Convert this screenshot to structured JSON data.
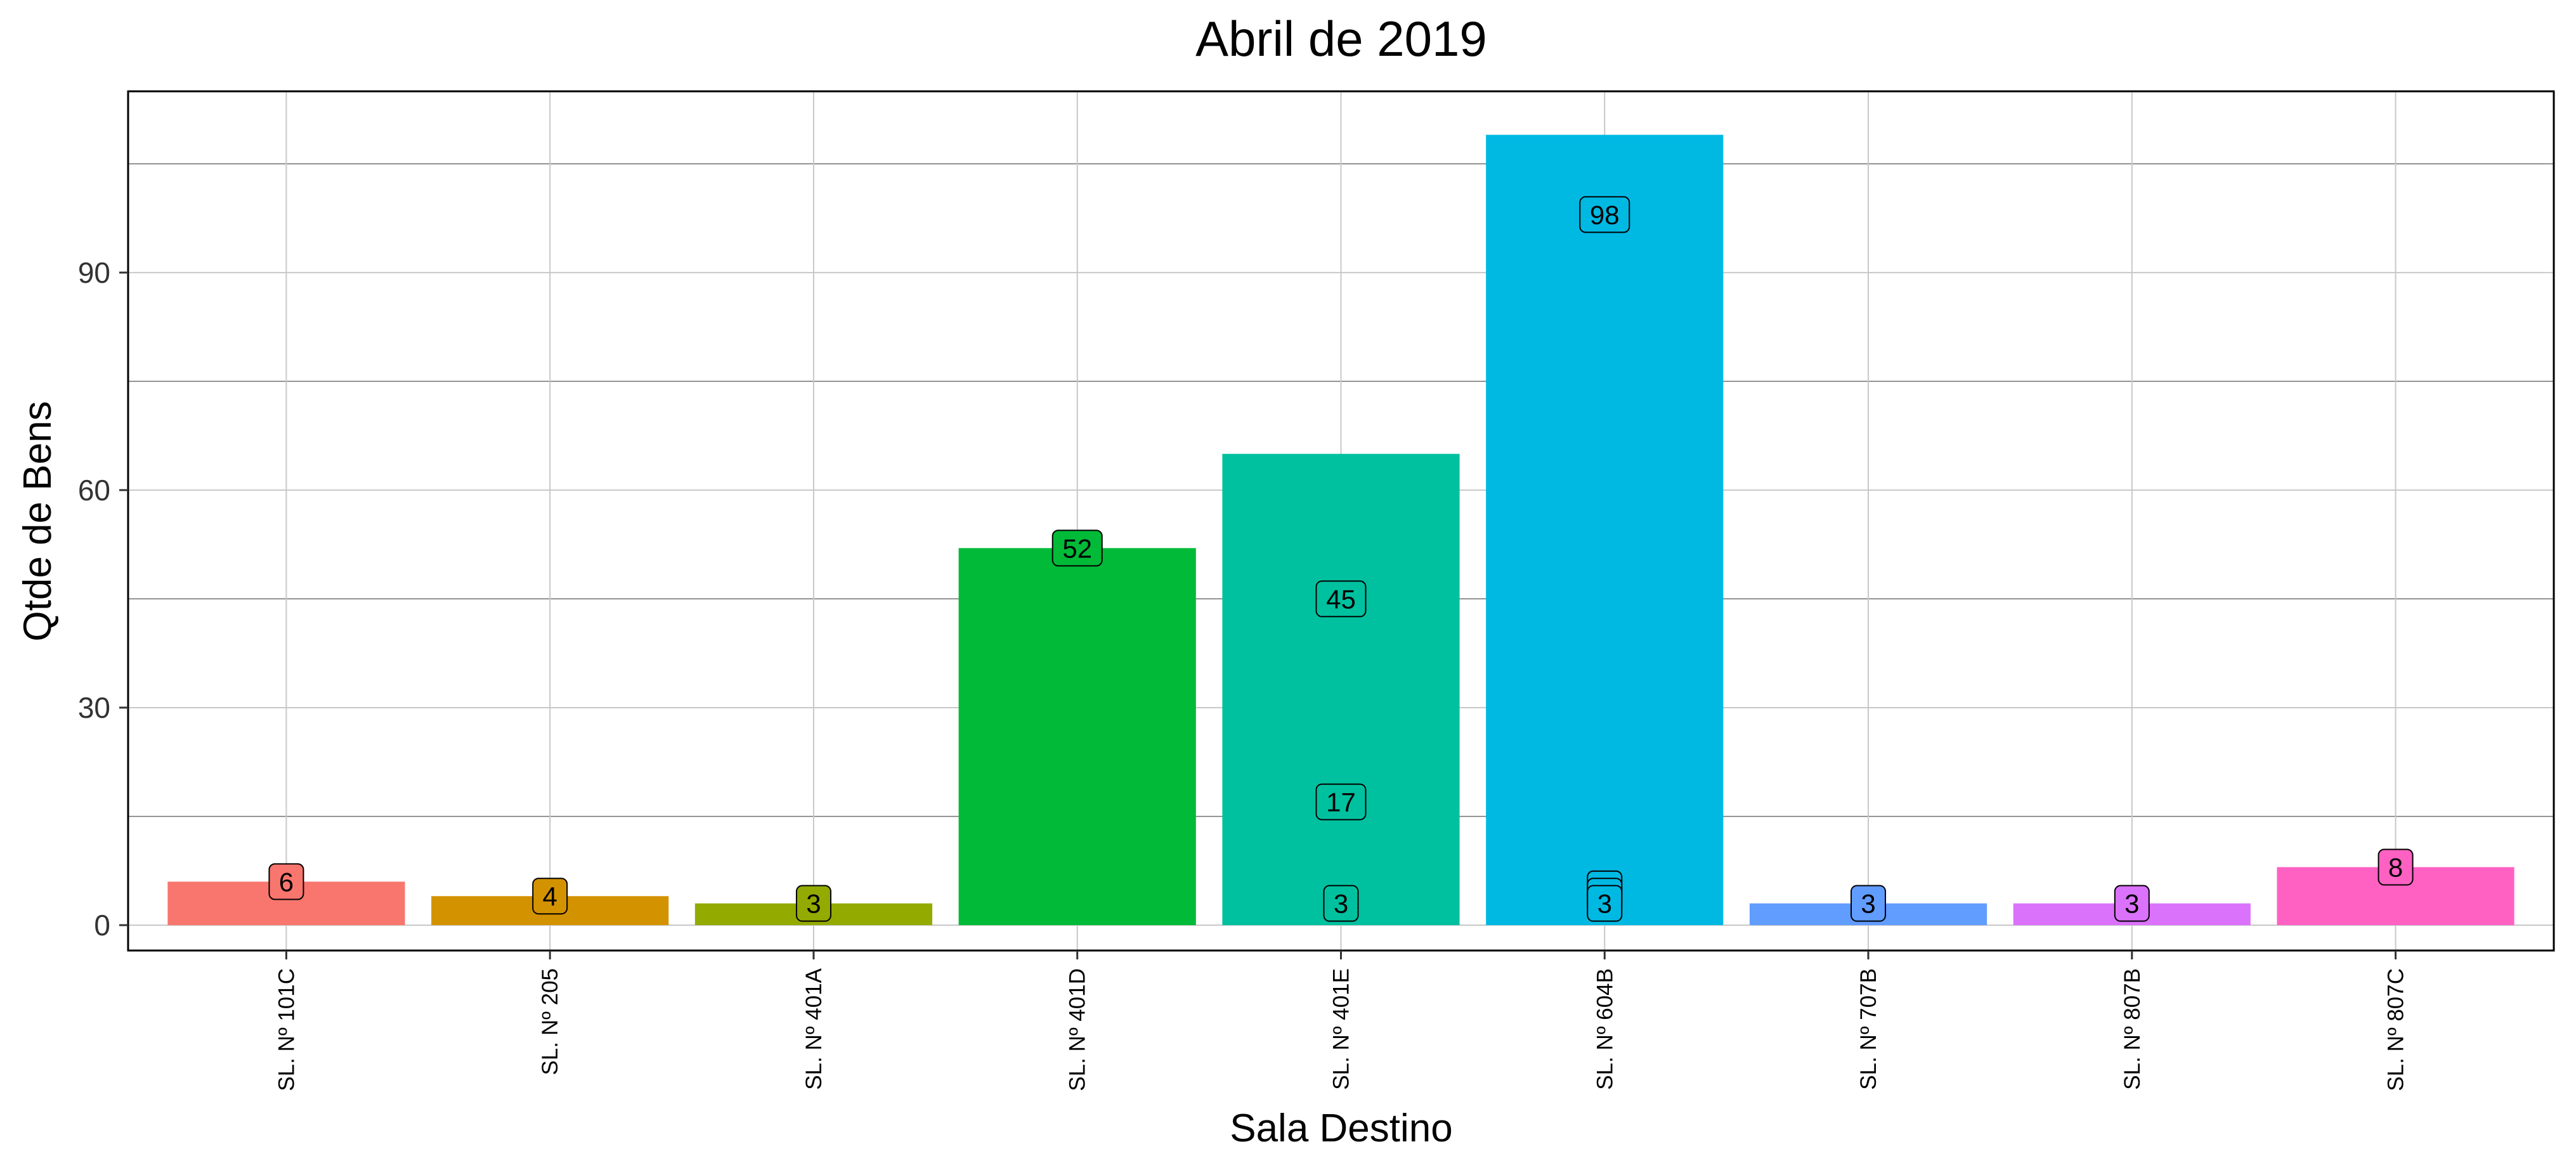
{
  "chart_data": {
    "type": "bar",
    "title": "Abril  de  2019",
    "xlabel": "Sala Destino",
    "ylabel": "Qtde de Bens",
    "ylim": [
      -3.5,
      115
    ],
    "yticks": [
      0,
      30,
      60,
      90
    ],
    "grid": true,
    "categories": [
      "SL. Nº 101C",
      "SL. Nº 205",
      "SL. Nº 401A",
      "SL. Nº 401D",
      "SL. Nº 401E",
      "SL. Nº 604B",
      "SL. Nº 707B",
      "SL. Nº 807B",
      "SL. Nº 807C"
    ],
    "values": [
      6,
      4,
      3,
      52,
      65,
      109,
      3,
      3,
      8
    ],
    "colors": [
      "#F8766D",
      "#D39200",
      "#93AA00",
      "#00BA38",
      "#00C19F",
      "#00B9E3",
      "#619CFF",
      "#DB72FB",
      "#FF61C3"
    ],
    "data_labels": [
      {
        "category": 0,
        "value": 6,
        "text": "6"
      },
      {
        "category": 1,
        "value": 4,
        "text": "4"
      },
      {
        "category": 2,
        "value": 3,
        "text": "3"
      },
      {
        "category": 3,
        "value": 52,
        "text": "52"
      },
      {
        "category": 4,
        "value": 45,
        "text": "45"
      },
      {
        "category": 4,
        "value": 17,
        "text": "17"
      },
      {
        "category": 4,
        "value": 3,
        "text": "3"
      },
      {
        "category": 5,
        "value": 98,
        "text": "98"
      },
      {
        "category": 5,
        "value": 5,
        "text": ""
      },
      {
        "category": 5,
        "value": 4,
        "text": ""
      },
      {
        "category": 5,
        "value": 3,
        "text": "3"
      },
      {
        "category": 6,
        "value": 3,
        "text": "3"
      },
      {
        "category": 7,
        "value": 3,
        "text": "3"
      },
      {
        "category": 8,
        "value": 8,
        "text": "8"
      }
    ]
  }
}
